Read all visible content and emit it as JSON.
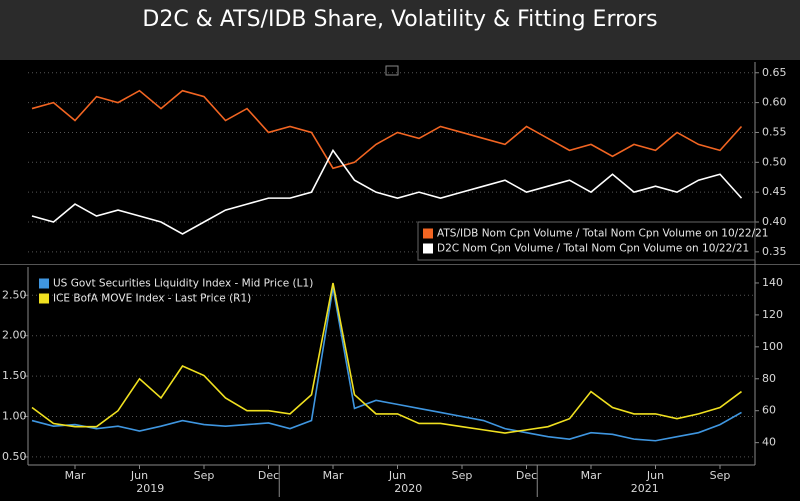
{
  "title": "D2C & ATS/IDB Share, Volatility & Fitting Errors",
  "chart_data": [
    {
      "type": "line",
      "x": [
        "2019-01",
        "2019-02",
        "2019-03",
        "2019-04",
        "2019-05",
        "2019-06",
        "2019-07",
        "2019-08",
        "2019-09",
        "2019-10",
        "2019-11",
        "2019-12",
        "2020-01",
        "2020-02",
        "2020-03",
        "2020-04",
        "2020-05",
        "2020-06",
        "2020-07",
        "2020-08",
        "2020-09",
        "2020-10",
        "2020-11",
        "2020-12",
        "2021-01",
        "2021-02",
        "2021-03",
        "2021-04",
        "2021-05",
        "2021-06",
        "2021-07",
        "2021-08",
        "2021-09",
        "2021-10"
      ],
      "ylim": [
        0.333,
        0.663
      ],
      "yticks": [
        0.35,
        {
          "value": 0.4,
          "label": "0.40"
        },
        0.45,
        {
          "value": 0.5,
          "label": "0.50"
        },
        0.55,
        {
          "value": 0.6,
          "label": "0.60"
        },
        0.65
      ],
      "grid": true,
      "legend": "lower right",
      "series": [
        {
          "name": "ATS/IDB Nom Cpn Volume / Total Nom Cpn Volume on 10/22/21",
          "color": "#f26522",
          "values": [
            0.59,
            0.6,
            0.57,
            0.61,
            0.6,
            0.62,
            0.59,
            0.62,
            0.61,
            0.57,
            0.59,
            0.55,
            0.56,
            0.55,
            0.49,
            0.5,
            0.53,
            0.55,
            0.54,
            0.56,
            0.55,
            0.54,
            0.53,
            0.56,
            0.54,
            0.52,
            0.53,
            0.51,
            0.53,
            0.52,
            0.55,
            0.53,
            0.52,
            0.56
          ]
        },
        {
          "name": "D2C Nom Cpn Volume / Total Nom Cpn Volume on 10/22/21",
          "color": "#ffffff",
          "values": [
            0.41,
            0.4,
            0.43,
            0.41,
            0.42,
            0.41,
            0.4,
            0.38,
            0.4,
            0.42,
            0.43,
            0.44,
            0.44,
            0.45,
            0.52,
            0.47,
            0.45,
            0.44,
            0.45,
            0.44,
            0.45,
            0.46,
            0.47,
            0.45,
            0.46,
            0.47,
            0.45,
            0.48,
            0.45,
            0.46,
            0.45,
            0.47,
            0.48,
            0.44
          ]
        }
      ]
    },
    {
      "type": "line",
      "x": [
        "2019-01",
        "2019-02",
        "2019-03",
        "2019-04",
        "2019-05",
        "2019-06",
        "2019-07",
        "2019-08",
        "2019-09",
        "2019-10",
        "2019-11",
        "2019-12",
        "2020-01",
        "2020-02",
        "2020-03",
        "2020-04",
        "2020-05",
        "2020-06",
        "2020-07",
        "2020-08",
        "2020-09",
        "2020-10",
        "2020-11",
        "2020-12",
        "2021-01",
        "2021-02",
        "2021-03",
        "2021-04",
        "2021-05",
        "2021-06",
        "2021-07",
        "2021-08",
        "2021-09",
        "2021-10"
      ],
      "xticks": [
        {
          "value": "2019-03",
          "label": "Mar"
        },
        {
          "value": "2019-06",
          "label": "Jun"
        },
        {
          "value": "2019-09",
          "label": "Sep"
        },
        {
          "value": "2019-12",
          "label": "Dec"
        },
        {
          "value": "2020-03",
          "label": "Mar"
        },
        {
          "value": "2020-06",
          "label": "Jun"
        },
        {
          "value": "2020-09",
          "label": "Sep"
        },
        {
          "value": "2020-12",
          "label": "Dec"
        },
        {
          "value": "2021-03",
          "label": "Mar"
        },
        {
          "value": "2021-06",
          "label": "Jun"
        },
        {
          "value": "2021-09",
          "label": "Sep"
        }
      ],
      "x_group_labels": [
        "2019",
        "2020",
        "2021"
      ],
      "ylim": [
        0.4,
        2.85
      ],
      "yticks": [
        {
          "value": 0.5,
          "label": "0.50"
        },
        {
          "value": 1,
          "label": "1.00"
        },
        {
          "value": 1.5,
          "label": "1.50"
        },
        {
          "value": 2,
          "label": "2.00"
        },
        {
          "value": 2.5,
          "label": "2.50"
        }
      ],
      "y2lim": [
        26,
        150
      ],
      "y2ticks": [
        40,
        60,
        80,
        100,
        120,
        140
      ],
      "grid": true,
      "legend": "upper left",
      "series": [
        {
          "name": "US Govt Securities Liquidity Index - Mid Price (L1)",
          "color": "#3f96e0",
          "values": [
            0.95,
            0.88,
            0.9,
            0.85,
            0.88,
            0.82,
            0.88,
            0.95,
            0.9,
            0.88,
            0.9,
            0.92,
            0.85,
            0.95,
            2.6,
            1.1,
            1.2,
            1.15,
            1.1,
            1.05,
            1.0,
            0.95,
            0.85,
            0.8,
            0.75,
            0.72,
            0.8,
            0.78,
            0.72,
            0.7,
            0.75,
            0.8,
            0.9,
            1.05
          ]
        },
        {
          "name": "ICE BofA MOVE Index - Last Price (R1)",
          "color": "#f0e020",
          "axis": "y2",
          "values": [
            62,
            52,
            50,
            50,
            60,
            80,
            68,
            88,
            82,
            68,
            60,
            60,
            58,
            70,
            140,
            70,
            58,
            58,
            52,
            52,
            50,
            48,
            46,
            48,
            50,
            55,
            72,
            62,
            58,
            58,
            55,
            58,
            62,
            72
          ]
        }
      ]
    }
  ]
}
